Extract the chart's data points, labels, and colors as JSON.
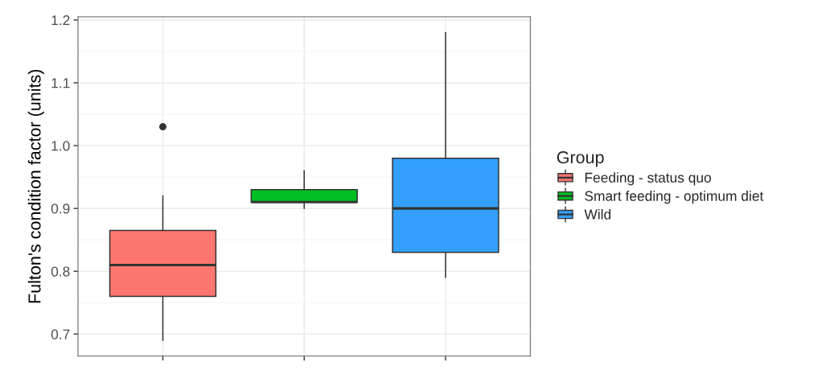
{
  "chart_data": {
    "type": "box",
    "ylabel": "Fulton's condition factor (units)",
    "legend_title": "Group",
    "categories": [
      null,
      null,
      null
    ],
    "series": [
      {
        "name": "Feeding - status quo",
        "color": "#ff7670",
        "boxes": [
          {
            "low": 0.69,
            "q1": 0.76,
            "median": 0.81,
            "q3": 0.865,
            "high": 0.92,
            "outliers": [
              1.03
            ]
          },
          null,
          null
        ]
      },
      {
        "name": "Smart feeding - optimum diet",
        "color": "#00bf22",
        "boxes": [
          null,
          {
            "low": 0.9,
            "q1": 0.91,
            "median": 0.91,
            "q3": 0.93,
            "high": 0.96
          },
          null
        ]
      },
      {
        "name": "Wild",
        "color": "#33a0ff",
        "boxes": [
          null,
          null,
          {
            "low": 0.79,
            "q1": 0.83,
            "median": 0.9,
            "q3": 0.98,
            "high": 1.18
          }
        ]
      }
    ],
    "ylim": [
      0.665,
      1.205
    ],
    "yticks": [
      0.7,
      0.8,
      0.9,
      {
        "value": 1,
        "label": "1.0"
      },
      1.1,
      1.2
    ],
    "grid": true,
    "legend": "right",
    "tick_labels": "y"
  }
}
